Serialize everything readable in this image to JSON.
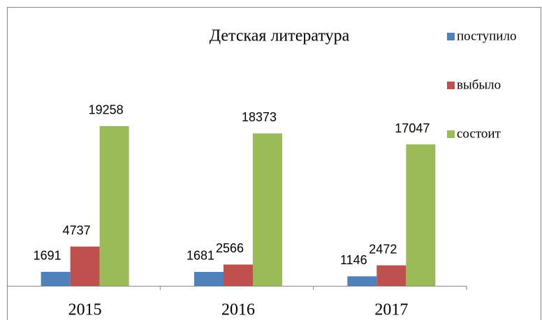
{
  "chart_data": {
    "type": "bar",
    "title": "Детская литература",
    "categories": [
      "2015",
      "2016",
      "2017"
    ],
    "series": [
      {
        "name": "поступило",
        "color": "#4f81bd",
        "values": [
          1691,
          1681,
          1146
        ]
      },
      {
        "name": "выбыло",
        "color": "#c0504d",
        "values": [
          4737,
          2566,
          2472
        ]
      },
      {
        "name": "состоит",
        "color": "#9bbb59",
        "values": [
          19258,
          18373,
          17047
        ]
      }
    ],
    "ylim": [
      0,
      20000
    ],
    "legend": "right",
    "data_labels": true
  }
}
